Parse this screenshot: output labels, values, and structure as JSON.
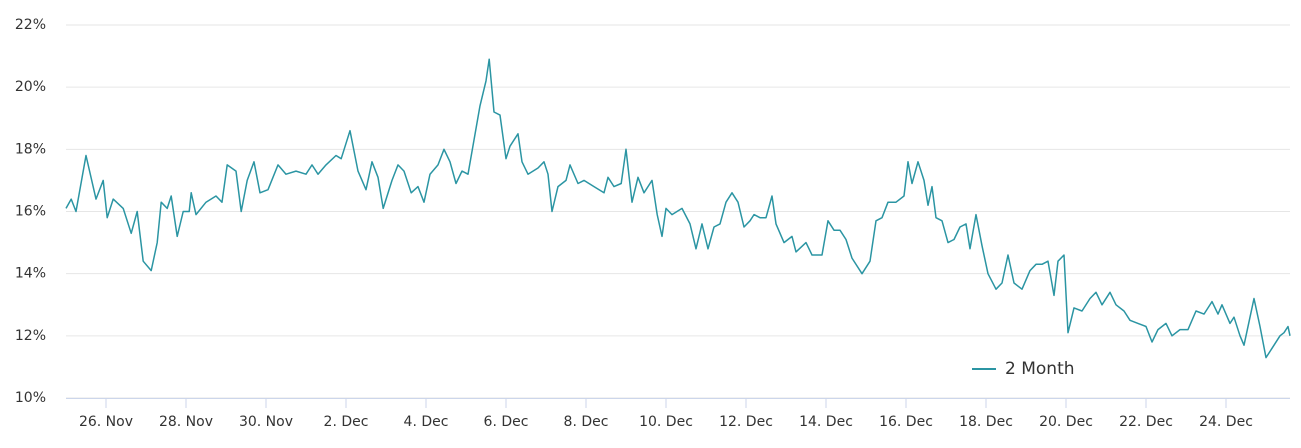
{
  "chart_data": {
    "type": "line",
    "series": [
      {
        "name": "2 Month",
        "color": "#2b95a3",
        "x": [
          0,
          0.13,
          0.25,
          0.5,
          0.75,
          0.93,
          1.03,
          1.18,
          1.43,
          1.63,
          1.78,
          1.93,
          2.13,
          2.28,
          2.38,
          2.53,
          2.63,
          2.78,
          2.93,
          3.08,
          3.13,
          3.25,
          3.5,
          3.75,
          3.9,
          4.03,
          4.25,
          4.38,
          4.53,
          4.7,
          4.85,
          5.05,
          5.3,
          5.5,
          5.75,
          6,
          6.15,
          6.3,
          6.5,
          6.75,
          6.88,
          7.1,
          7.3,
          7.5,
          7.65,
          7.8,
          7.93,
          8.15,
          8.3,
          8.45,
          8.63,
          8.8,
          8.95,
          9.1,
          9.3,
          9.45,
          9.6,
          9.75,
          9.9,
          10.05,
          10.2,
          10.35,
          10.5,
          10.58,
          10.7,
          10.85,
          11,
          11.1,
          11.3,
          11.4,
          11.55,
          11.8,
          11.95,
          12.05,
          12.15,
          12.3,
          12.5,
          12.6,
          12.8,
          12.95,
          13.2,
          13.45,
          13.55,
          13.7,
          13.88,
          14,
          14.15,
          14.3,
          14.45,
          14.65,
          14.78,
          14.9,
          15,
          15.15,
          15.4,
          15.6,
          15.75,
          15.9,
          16.05,
          16.2,
          16.35,
          16.5,
          16.65,
          16.8,
          16.95,
          17.1,
          17.2,
          17.35,
          17.5,
          17.65,
          17.75,
          17.95,
          18.15,
          18.25,
          18.5,
          18.65,
          18.9,
          19.05,
          19.2,
          19.35,
          19.5,
          19.65,
          19.9,
          20.1,
          20.25,
          20.4,
          20.55,
          20.75,
          20.95,
          21.05,
          21.15,
          21.3,
          21.45,
          21.55,
          21.65,
          21.75,
          21.9,
          22.05,
          22.2,
          22.35,
          22.5,
          22.6,
          22.75,
          22.9,
          23.05,
          23.25,
          23.4,
          23.55,
          23.7,
          23.9,
          24.1,
          24.25,
          24.4,
          24.55,
          24.7,
          24.8,
          24.95,
          25.05,
          25.2,
          25.4,
          25.6,
          25.75,
          25.9,
          26.1,
          26.25,
          26.45,
          26.6,
          26.8,
          27,
          27.15,
          27.3,
          27.5,
          27.65,
          27.85,
          28.05,
          28.25,
          28.45,
          28.65,
          28.8,
          28.9,
          29.1,
          29.2,
          29.35,
          29.45,
          29.6,
          29.7,
          29.85,
          30,
          30.15,
          30.35,
          30.45,
          30.55,
          30.6
        ],
        "values": [
          16.1,
          16.4,
          16.0,
          17.8,
          16.4,
          17.0,
          15.8,
          16.4,
          16.1,
          15.3,
          16.0,
          14.4,
          14.1,
          15.0,
          16.3,
          16.1,
          16.5,
          15.2,
          16.0,
          16.0,
          16.6,
          15.9,
          16.3,
          16.5,
          16.3,
          17.5,
          17.3,
          16.0,
          17.0,
          17.6,
          16.6,
          16.7,
          17.5,
          17.2,
          17.3,
          17.2,
          17.5,
          17.2,
          17.5,
          17.8,
          17.7,
          18.6,
          17.3,
          16.7,
          17.6,
          17.1,
          16.1,
          17.0,
          17.5,
          17.3,
          16.6,
          16.8,
          16.3,
          17.2,
          17.5,
          18.0,
          17.6,
          16.9,
          17.3,
          17.2,
          18.3,
          19.4,
          20.2,
          20.9,
          19.2,
          19.1,
          17.7,
          18.1,
          18.5,
          17.6,
          17.2,
          17.4,
          17.6,
          17.2,
          16.0,
          16.8,
          17.0,
          17.5,
          16.9,
          17.0,
          16.8,
          16.6,
          17.1,
          16.8,
          16.9,
          18.0,
          16.3,
          17.1,
          16.6,
          17.0,
          15.9,
          15.2,
          16.1,
          15.9,
          16.1,
          15.6,
          14.8,
          15.6,
          14.8,
          15.5,
          15.6,
          16.3,
          16.6,
          16.3,
          15.5,
          15.7,
          15.9,
          15.8,
          15.8,
          16.5,
          15.6,
          15.0,
          15.2,
          14.7,
          15.0,
          14.6,
          14.6,
          15.7,
          15.4,
          15.4,
          15.1,
          14.5,
          14.0,
          14.4,
          15.7,
          15.8,
          16.3,
          16.3,
          16.5,
          17.6,
          16.9,
          17.6,
          17.0,
          16.2,
          16.8,
          15.8,
          15.7,
          15.0,
          15.1,
          15.5,
          15.6,
          14.8,
          15.9,
          14.9,
          14.0,
          13.5,
          13.7,
          14.6,
          13.7,
          13.5,
          14.1,
          14.3,
          14.3,
          14.4,
          13.3,
          14.4,
          14.6,
          12.1,
          12.9,
          12.8,
          13.2,
          13.4,
          13.0,
          13.4,
          13.0,
          12.8,
          12.5,
          12.4,
          12.3,
          11.8,
          12.2,
          12.4,
          12.0,
          12.2,
          12.2,
          12.8,
          12.7,
          13.1,
          12.7,
          13.0,
          12.4,
          12.6,
          12.0,
          11.7,
          12.6,
          13.2,
          12.3,
          11.3,
          11.6,
          12.0,
          12.1,
          12.3,
          12.0
        ]
      }
    ],
    "xlim": [
      0,
      30.6
    ],
    "xticks": [
      {
        "value": 1,
        "label": "26. Nov"
      },
      {
        "value": 3,
        "label": "28. Nov"
      },
      {
        "value": 5,
        "label": "30. Nov"
      },
      {
        "value": 7,
        "label": "2. Dec"
      },
      {
        "value": 9,
        "label": "4. Dec"
      },
      {
        "value": 11,
        "label": "6. Dec"
      },
      {
        "value": 13,
        "label": "8. Dec"
      },
      {
        "value": 15,
        "label": "10. Dec"
      },
      {
        "value": 17,
        "label": "12. Dec"
      },
      {
        "value": 19,
        "label": "14. Dec"
      },
      {
        "value": 21,
        "label": "16. Dec"
      },
      {
        "value": 23,
        "label": "18. Dec"
      },
      {
        "value": 25,
        "label": "20. Dec"
      },
      {
        "value": 27,
        "label": "22. Dec"
      },
      {
        "value": 29,
        "label": "24. Dec"
      }
    ],
    "ylim": [
      10,
      22
    ],
    "yticks": [
      {
        "value": 10,
        "label": "10%"
      },
      {
        "value": 12,
        "label": "12%"
      },
      {
        "value": 14,
        "label": "14%"
      },
      {
        "value": 16,
        "label": "16%"
      },
      {
        "value": 18,
        "label": "18%"
      },
      {
        "value": 20,
        "label": "20%"
      },
      {
        "value": 22,
        "label": "22%"
      }
    ],
    "grid": true,
    "legend": "lower right"
  }
}
